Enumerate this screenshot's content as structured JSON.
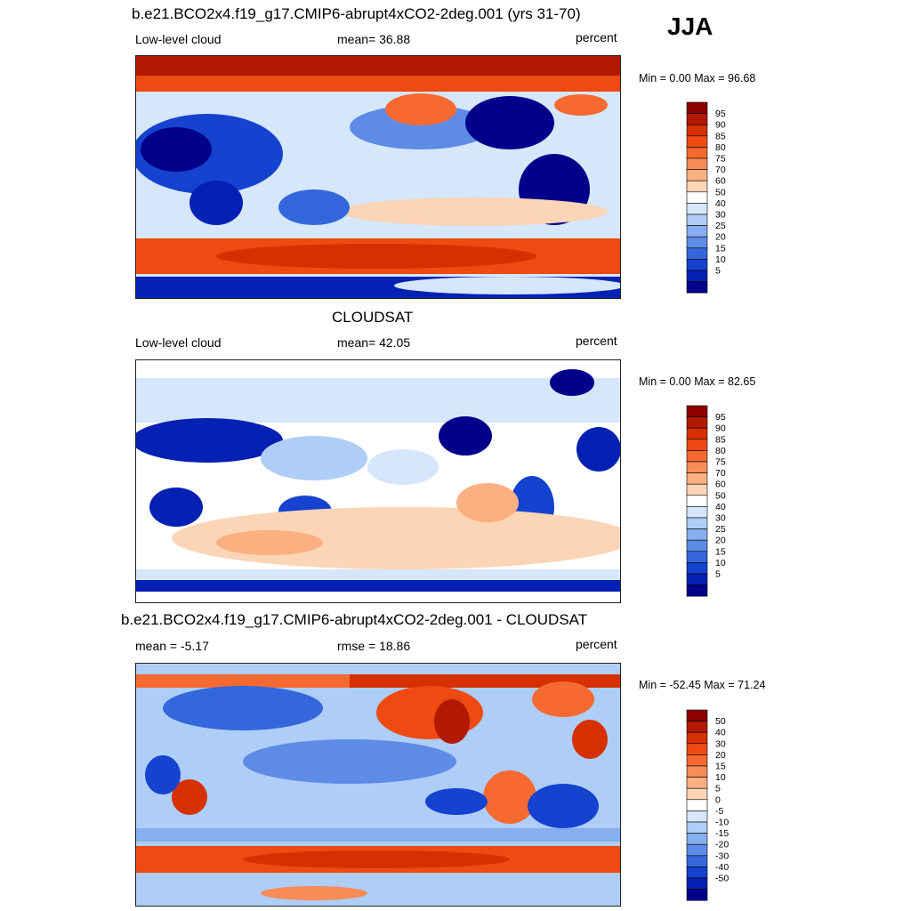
{
  "season": "JJA",
  "panels": [
    {
      "title": "b.e21.BCO2x4.f19_g17.CMIP6-abrupt4xCO2-2deg.001 (yrs 31-70)",
      "left_label": "Low-level cloud",
      "center_label": "mean=  36.88",
      "right_label": "percent",
      "minmax": "Min =   0.00 Max =  96.68",
      "colorbar_labels": [
        "95",
        "90",
        "85",
        "80",
        "75",
        "70",
        "60",
        "50",
        "40",
        "30",
        "25",
        "20",
        "15",
        "10",
        "5"
      ],
      "colors": [
        "#8b0000",
        "#b11a00",
        "#d73000",
        "#ee4a12",
        "#f66a32",
        "#f98b58",
        "#fbb082",
        "#fcd5b6",
        "#ffffff",
        "#d6e6fb",
        "#aecdf7",
        "#86aef0",
        "#5e8be6",
        "#3467dc",
        "#1543d0",
        "#0521b4",
        "#00008b"
      ]
    },
    {
      "title": "CLOUDSAT",
      "left_label": "Low-level cloud",
      "center_label": "mean=  42.05",
      "right_label": "percent",
      "minmax": "Min =   0.00 Max =  82.65",
      "colorbar_labels": [
        "95",
        "90",
        "85",
        "80",
        "75",
        "70",
        "60",
        "50",
        "40",
        "30",
        "25",
        "20",
        "15",
        "10",
        "5"
      ],
      "colors": [
        "#8b0000",
        "#b11a00",
        "#d73000",
        "#ee4a12",
        "#f66a32",
        "#f98b58",
        "#fbb082",
        "#fcd5b6",
        "#ffffff",
        "#d6e6fb",
        "#aecdf7",
        "#86aef0",
        "#5e8be6",
        "#3467dc",
        "#1543d0",
        "#0521b4",
        "#00008b"
      ]
    },
    {
      "title": "b.e21.BCO2x4.f19_g17.CMIP6-abrupt4xCO2-2deg.001 - CLOUDSAT",
      "left_label": "mean =  -5.17",
      "center_label": "rmse =  18.86",
      "right_label": "percent",
      "minmax": "Min = -52.45 Max =  71.24",
      "colorbar_labels": [
        "50",
        "40",
        "30",
        "20",
        "15",
        "10",
        "5",
        "0",
        "-5",
        "-10",
        "-15",
        "-20",
        "-30",
        "-40",
        "-50"
      ],
      "colors": [
        "#8b0000",
        "#b11a00",
        "#d73000",
        "#ee4a12",
        "#f66a32",
        "#f98b58",
        "#fbb082",
        "#fcd5b6",
        "#ffffff",
        "#d6e6fb",
        "#aecdf7",
        "#86aef0",
        "#5e8be6",
        "#3467dc",
        "#1543d0",
        "#0521b4",
        "#00008b"
      ]
    }
  ]
}
